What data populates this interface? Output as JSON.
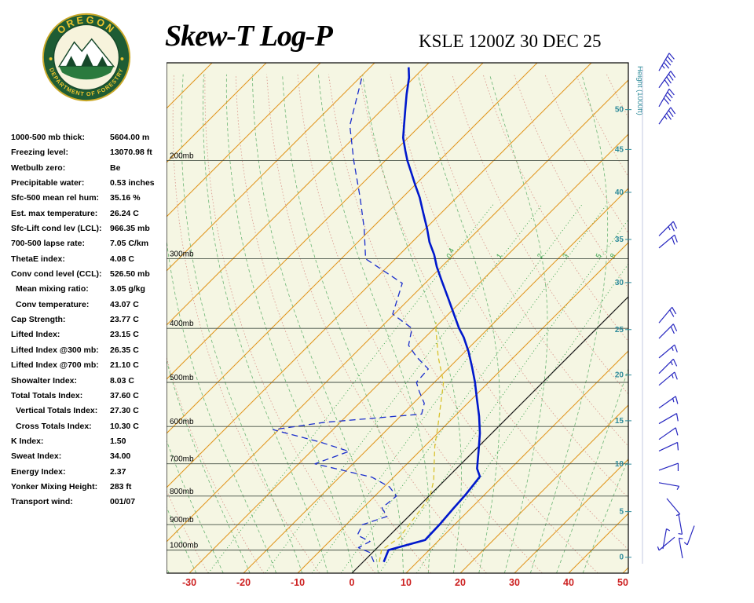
{
  "header": {
    "title": "Skew-T Log-P",
    "station": "KSLE 1200Z 30 DEC 25"
  },
  "logo": {
    "arc_top": "OREGON",
    "arc_bottom": "DEPARTMENT OF FORESTRY"
  },
  "indices": [
    {
      "label": "1000-500 mb thick:",
      "value": "5604.00 m"
    },
    {
      "label": "Freezing level:",
      "value": "13070.98 ft"
    },
    {
      "label": "Wetbulb zero:",
      "value": "Be"
    },
    {
      "label": "Precipitable water:",
      "value": "0.53 inches"
    },
    {
      "label": "Sfc-500 mean rel hum:",
      "value": "35.16 %"
    },
    {
      "label": "Est. max temperature:",
      "value": "26.24 C"
    },
    {
      "label": "Sfc-Lift cond lev (LCL):",
      "value": "966.35 mb"
    },
    {
      "label": "700-500 lapse rate:",
      "value": "7.05 C/km"
    },
    {
      "label": "ThetaE index:",
      "value": "4.08 C"
    },
    {
      "label": "Conv cond level (CCL):",
      "value": "526.50 mb"
    },
    {
      "label": "Mean mixing ratio:",
      "value": "3.05 g/kg",
      "indent": true
    },
    {
      "label": "Conv temperature:",
      "value": "43.07 C",
      "indent": true
    },
    {
      "label": "Cap Strength:",
      "value": "23.77 C"
    },
    {
      "label": "Lifted Index:",
      "value": "23.15 C"
    },
    {
      "label": "Lifted Index @300 mb:",
      "value": "26.35 C"
    },
    {
      "label": "Lifted Index @700 mb:",
      "value": "21.10 C"
    },
    {
      "label": "Showalter Index:",
      "value": "8.03 C"
    },
    {
      "label": "Total Totals Index:",
      "value": "37.60 C"
    },
    {
      "label": "Vertical Totals Index:",
      "value": "27.30 C",
      "indent": true
    },
    {
      "label": "Cross Totals Index:",
      "value": "10.30 C",
      "indent": true
    },
    {
      "label": "K Index:",
      "value": "1.50"
    },
    {
      "label": "Sweat Index:",
      "value": "34.00"
    },
    {
      "label": "Energy Index:",
      "value": "2.37"
    },
    {
      "label": "Yonker Mixing Height:",
      "value": "283 ft"
    },
    {
      "label": "Transport wind:",
      "value": "001/07"
    }
  ],
  "chart_data": {
    "type": "skew-t-log-p",
    "pressure_axis_mb": [
      200,
      300,
      400,
      500,
      600,
      700,
      800,
      900,
      1000
    ],
    "pressure_label_suffix": "mb",
    "temp_axis_c": [
      -30,
      -20,
      -10,
      0,
      10,
      20,
      30,
      40,
      50
    ],
    "temp_axis_title": "",
    "height_axis_title": "Height (1000ft)",
    "height_labels_1000ft": [
      {
        "text": "50",
        "p": 162
      },
      {
        "text": "45",
        "p": 191
      },
      {
        "text": "40",
        "p": 228
      },
      {
        "text": "35",
        "p": 277
      },
      {
        "text": "30",
        "p": 331
      },
      {
        "text": "25",
        "p": 402
      },
      {
        "text": "20",
        "p": 485
      },
      {
        "text": "15",
        "p": 586
      },
      {
        "text": "10",
        "p": 701
      },
      {
        "text": "5",
        "p": 853
      },
      {
        "text": "0",
        "p": 1030
      }
    ],
    "mixing_ratio_gkg": [
      0.4,
      1,
      2,
      3,
      5,
      8
    ],
    "isotherm_step_c": 10,
    "pressure_range_mb": [
      134,
      1100
    ],
    "series": {
      "temperature_p_c": [
        [
          1050,
          3.8
        ],
        [
          1000,
          2.5
        ],
        [
          959,
          7.4
        ],
        [
          899,
          7.2
        ],
        [
          843,
          6.8
        ],
        [
          795,
          6.5
        ],
        [
          762,
          6.1
        ],
        [
          738,
          5.8
        ],
        [
          714,
          3.8
        ],
        [
          665,
          0.9
        ],
        [
          617,
          -2.2
        ],
        [
          575,
          -5.5
        ],
        [
          530,
          -9.6
        ],
        [
          500,
          -12.5
        ],
        [
          470,
          -15.8
        ],
        [
          440,
          -19.4
        ],
        [
          415,
          -22.9
        ],
        [
          400,
          -25.4
        ],
        [
          377,
          -29.0
        ],
        [
          353,
          -33.0
        ],
        [
          328,
          -37.5
        ],
        [
          310,
          -40.9
        ],
        [
          295,
          -43.6
        ],
        [
          280,
          -46.8
        ],
        [
          265,
          -49.7
        ],
        [
          247,
          -53.6
        ],
        [
          233,
          -56.8
        ],
        [
          221,
          -60.0
        ],
        [
          209,
          -63.3
        ],
        [
          200,
          -65.9
        ],
        [
          192,
          -68.1
        ],
        [
          182,
          -70.9
        ],
        [
          173,
          -73.0
        ],
        [
          162,
          -75.7
        ],
        [
          152,
          -78.3
        ],
        [
          142,
          -80.9
        ],
        [
          136,
          -82.9
        ]
      ],
      "dewpoint_p_c": [
        [
          1050,
          2.0
        ],
        [
          1010,
          -0.5
        ],
        [
          990,
          -3.5
        ],
        [
          965,
          -2.5
        ],
        [
          940,
          -6.0
        ],
        [
          900,
          -7.0
        ],
        [
          870,
          -4.0
        ],
        [
          840,
          -6.5
        ],
        [
          800,
          -6.0
        ],
        [
          770,
          -9.0
        ],
        [
          740,
          -14.0
        ],
        [
          700,
          -27.0
        ],
        [
          665,
          -23.0
        ],
        [
          640,
          -30.0
        ],
        [
          608,
          -41.0
        ],
        [
          590,
          -33.0
        ],
        [
          570,
          -16.5
        ],
        [
          545,
          -18.0
        ],
        [
          520,
          -21.0
        ],
        [
          500,
          -23.3
        ],
        [
          473,
          -23.6
        ],
        [
          450,
          -28.0
        ],
        [
          429,
          -31.6
        ],
        [
          400,
          -34.1
        ],
        [
          377,
          -40.3
        ],
        [
          332,
          -44.2
        ],
        [
          300,
          -55.5
        ],
        [
          265,
          -61.3
        ],
        [
          233,
          -67.8
        ],
        [
          200,
          -75.8
        ],
        [
          173,
          -83.0
        ],
        [
          142,
          -89.6
        ]
      ],
      "wetbulb_p_c": [
        [
          1050,
          3.0
        ],
        [
          1000,
          1.2
        ],
        [
          950,
          2.2
        ],
        [
          900,
          1.6
        ],
        [
          850,
          1.0
        ],
        [
          800,
          0.2
        ],
        [
          750,
          -2.0
        ],
        [
          700,
          -5.0
        ],
        [
          650,
          -8.2
        ],
        [
          600,
          -11.2
        ],
        [
          550,
          -14.6
        ],
        [
          500,
          -18.3
        ],
        [
          450,
          -24.0
        ],
        [
          400,
          -29.7
        ],
        [
          390,
          -30.8
        ]
      ]
    },
    "wind_barbs_kt": [
      {
        "p": 138,
        "dir": 30,
        "spd": 45
      },
      {
        "p": 148,
        "dir": 35,
        "spd": 40
      },
      {
        "p": 160,
        "dir": 30,
        "spd": 40
      },
      {
        "p": 172,
        "dir": 35,
        "spd": 35
      },
      {
        "p": 273,
        "dir": 45,
        "spd": 25
      },
      {
        "p": 287,
        "dir": 50,
        "spd": 20
      },
      {
        "p": 391,
        "dir": 40,
        "spd": 20
      },
      {
        "p": 417,
        "dir": 45,
        "spd": 20
      },
      {
        "p": 452,
        "dir": 50,
        "spd": 15
      },
      {
        "p": 482,
        "dir": 45,
        "spd": 15
      },
      {
        "p": 506,
        "dir": 50,
        "spd": 15
      },
      {
        "p": 556,
        "dir": 55,
        "spd": 15
      },
      {
        "p": 593,
        "dir": 60,
        "spd": 10
      },
      {
        "p": 633,
        "dir": 55,
        "spd": 10
      },
      {
        "p": 664,
        "dir": 65,
        "spd": 10
      },
      {
        "p": 719,
        "dir": 70,
        "spd": 10
      },
      {
        "p": 757,
        "dir": 100,
        "spd": 8
      },
      {
        "p": 808,
        "dir": 140,
        "spd": 7,
        "xo": 10
      },
      {
        "p": 862,
        "dir": 170,
        "spd": 6,
        "xo": 25
      },
      {
        "p": 904,
        "dir": 200,
        "spd": 7,
        "xo": 45
      },
      {
        "p": 948,
        "dir": 230,
        "spd": 5,
        "xo": 20
      },
      {
        "p": 995,
        "dir": 10,
        "spd": 7,
        "xo": 5
      },
      {
        "p": 1034,
        "dir": 350,
        "spd": 5,
        "xo": 30
      }
    ],
    "colors": {
      "background": "#f5f6e3",
      "isotherm": "#e0951c",
      "zero_isotherm": "#1a1a1a",
      "isobar": "#444f44",
      "dry_adiabat": "#d4827a",
      "moist_adiabat": "#3fa050",
      "mixing_ratio": "#2f9e44",
      "temperature": "#0018cc",
      "dewpoint": "#1a2ecc",
      "wetbulb": "#d8c22e",
      "axis_temp_labels": "#cc1f1f",
      "height_labels": "#2e8b9a",
      "wind_barb": "#2727c0"
    }
  }
}
